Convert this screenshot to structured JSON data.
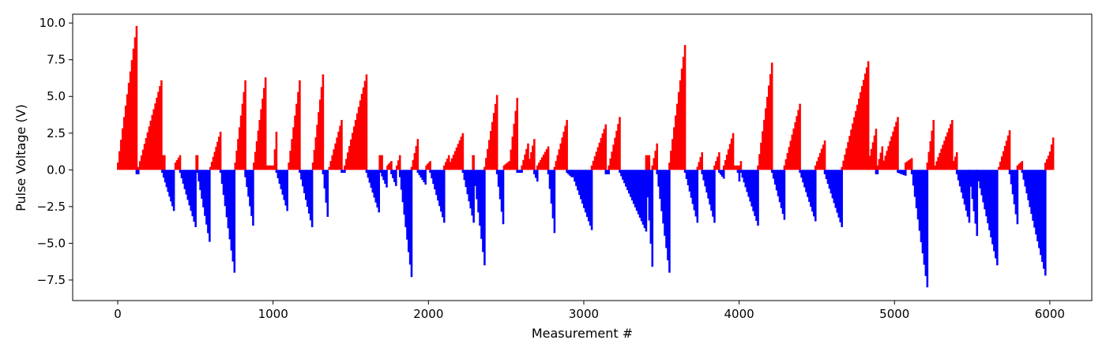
{
  "chart_data": {
    "type": "bar",
    "title": "",
    "xlabel": "Measurement #",
    "ylabel": "Pulse Voltage (V)",
    "xlim": [
      -290,
      6270
    ],
    "ylim": [
      -8.9,
      10.6
    ],
    "xticks": [
      0,
      1000,
      2000,
      3000,
      4000,
      5000,
      6000
    ],
    "xtick_labels": [
      "0",
      "1000",
      "2000",
      "3000",
      "4000",
      "5000",
      "6000"
    ],
    "yticks": [
      -7.5,
      -5.0,
      -2.5,
      0.0,
      2.5,
      5.0,
      7.5,
      10.0
    ],
    "ytick_labels": [
      "−7.5",
      "−5.0",
      "−2.5",
      "0.0",
      "2.5",
      "5.0",
      "7.5",
      "10.0"
    ],
    "grid": false,
    "legend": false,
    "colors": {
      "positive": "#ff0000",
      "negative": "#0000ff"
    },
    "bar_width": 10,
    "ramps": [
      [
        0,
        120,
        0.5,
        9.8
      ],
      [
        120,
        132,
        -0.3,
        -0.3
      ],
      [
        132,
        280,
        0.2,
        6.1
      ],
      [
        285,
        300,
        1.0,
        1.0
      ],
      [
        285,
        360,
        -0.2,
        -2.8
      ],
      [
        370,
        400,
        0.5,
        1.0
      ],
      [
        400,
        500,
        -0.2,
        -3.9
      ],
      [
        505,
        512,
        1.0,
        1.0
      ],
      [
        510,
        590,
        -0.2,
        -4.9
      ],
      [
        595,
        660,
        0.2,
        2.6
      ],
      [
        660,
        750,
        -0.2,
        -7.0
      ],
      [
        755,
        820,
        0.5,
        6.1
      ],
      [
        820,
        870,
        -0.5,
        -3.8
      ],
      [
        875,
        950,
        0.5,
        6.3
      ],
      [
        950,
        1000,
        0.3,
        0.3
      ],
      [
        1000,
        1020,
        0.2,
        2.6
      ],
      [
        1020,
        1090,
        -0.2,
        -2.8
      ],
      [
        1100,
        1170,
        0.5,
        6.1
      ],
      [
        1170,
        1250,
        -0.2,
        -3.9
      ],
      [
        1255,
        1320,
        0.5,
        6.5
      ],
      [
        1320,
        1350,
        -0.3,
        -3.2
      ],
      [
        1360,
        1440,
        0.2,
        3.4
      ],
      [
        1440,
        1460,
        -0.2,
        -0.2
      ],
      [
        1460,
        1600,
        0.3,
        6.5
      ],
      [
        1600,
        1680,
        -0.2,
        -2.9
      ],
      [
        1685,
        1700,
        1.0,
        1.0
      ],
      [
        1690,
        1730,
        -0.2,
        -1.2
      ],
      [
        1735,
        1760,
        0.3,
        0.6
      ],
      [
        1760,
        1790,
        -0.3,
        -1.1
      ],
      [
        1795,
        1815,
        0.3,
        1.0
      ],
      [
        1815,
        1890,
        -0.5,
        -7.3
      ],
      [
        1890,
        1930,
        0.2,
        2.1
      ],
      [
        1930,
        1980,
        -0.2,
        -1.0
      ],
      [
        1985,
        2010,
        0.3,
        0.6
      ],
      [
        2010,
        2100,
        -0.2,
        -3.6
      ],
      [
        2100,
        2130,
        0.3,
        1.0
      ],
      [
        2130,
        2220,
        0.3,
        2.5
      ],
      [
        2220,
        2290,
        -0.2,
        -3.6
      ],
      [
        2285,
        2290,
        1.0,
        1.0
      ],
      [
        2290,
        2360,
        -0.2,
        -6.5
      ],
      [
        2360,
        2440,
        0.2,
        5.1
      ],
      [
        2440,
        2480,
        -0.3,
        -3.7
      ],
      [
        2485,
        2520,
        0.3,
        0.6
      ],
      [
        2520,
        2570,
        0.5,
        4.9
      ],
      [
        2570,
        2600,
        -0.2,
        -0.2
      ],
      [
        2600,
        2640,
        0.3,
        1.8
      ],
      [
        2640,
        2680,
        0.3,
        2.1
      ],
      [
        2680,
        2700,
        -0.3,
        -0.8
      ],
      [
        2700,
        2770,
        0.3,
        1.6
      ],
      [
        2770,
        2810,
        -0.3,
        -4.3
      ],
      [
        2810,
        2890,
        0.2,
        3.4
      ],
      [
        2890,
        2920,
        -0.2,
        -0.5
      ],
      [
        2920,
        3050,
        -0.2,
        -4.1
      ],
      [
        3050,
        3140,
        0.3,
        3.1
      ],
      [
        3140,
        3160,
        -0.3,
        -0.3
      ],
      [
        3160,
        3230,
        0.3,
        3.6
      ],
      [
        3230,
        3400,
        -0.2,
        -4.2
      ],
      [
        3400,
        3420,
        1.0,
        1.0
      ],
      [
        3400,
        3440,
        -0.3,
        -6.6
      ],
      [
        3440,
        3470,
        0.3,
        1.8
      ],
      [
        3470,
        3550,
        -0.3,
        -7.0
      ],
      [
        3550,
        3650,
        0.5,
        8.5
      ],
      [
        3650,
        3730,
        -0.2,
        -3.6
      ],
      [
        3730,
        3760,
        0.2,
        1.2
      ],
      [
        3760,
        3840,
        -0.3,
        -3.6
      ],
      [
        3840,
        3870,
        0.3,
        1.2
      ],
      [
        3870,
        3900,
        -0.2,
        -0.6
      ],
      [
        3900,
        3960,
        0.3,
        2.5
      ],
      [
        3960,
        3990,
        0.3,
        0.3
      ],
      [
        3990,
        4000,
        -0.2,
        -0.8
      ],
      [
        4000,
        4010,
        0.3,
        0.6
      ],
      [
        4010,
        4120,
        -0.2,
        -3.8
      ],
      [
        4120,
        4210,
        0.3,
        7.3
      ],
      [
        4210,
        4290,
        -0.2,
        -3.4
      ],
      [
        4290,
        4390,
        0.3,
        4.5
      ],
      [
        4390,
        4490,
        -0.2,
        -3.5
      ],
      [
        4490,
        4550,
        0.3,
        2.0
      ],
      [
        4550,
        4660,
        -0.3,
        -3.9
      ],
      [
        4660,
        4830,
        0.2,
        7.4
      ],
      [
        4830,
        4880,
        0.5,
        2.8
      ],
      [
        4880,
        4890,
        -0.3,
        -0.3
      ],
      [
        4890,
        4920,
        0.3,
        1.6
      ],
      [
        4920,
        5020,
        0.3,
        3.6
      ],
      [
        5020,
        5070,
        -0.2,
        -0.4
      ],
      [
        5070,
        5110,
        0.5,
        0.8
      ],
      [
        5110,
        5210,
        -0.3,
        -8.0
      ],
      [
        5210,
        5250,
        0.5,
        3.4
      ],
      [
        5260,
        5370,
        0.3,
        3.4
      ],
      [
        5370,
        5400,
        0.3,
        1.2
      ],
      [
        5400,
        5480,
        -0.3,
        -3.6
      ],
      [
        5480,
        5530,
        -0.3,
        -4.5
      ],
      [
        5530,
        5660,
        -0.3,
        -6.5
      ],
      [
        5670,
        5740,
        0.2,
        2.7
      ],
      [
        5740,
        5790,
        -0.3,
        -3.7
      ],
      [
        5790,
        5820,
        0.3,
        0.6
      ],
      [
        5820,
        5970,
        -0.2,
        -7.2
      ],
      [
        5970,
        6000,
        0.5,
        1.2
      ],
      [
        5980,
        6020,
        0.3,
        2.2
      ]
    ]
  }
}
